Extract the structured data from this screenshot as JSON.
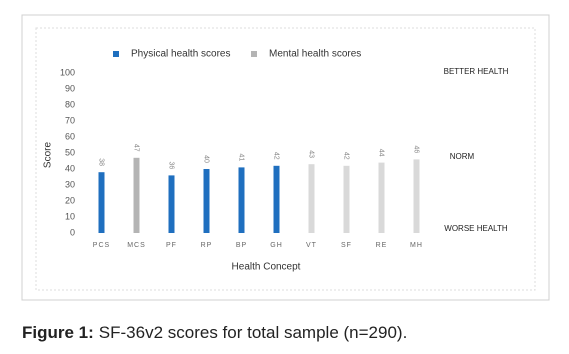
{
  "chart_data": {
    "type": "bar",
    "categories": [
      "PCS",
      "MCS",
      "PF",
      "RP",
      "BP",
      "GH",
      "VT",
      "SF",
      "RE",
      "MH"
    ],
    "series": [
      {
        "name": "Physical health scores",
        "color": "#1f6fbf",
        "values": [
          38,
          null,
          36,
          40,
          41,
          42,
          null,
          null,
          null,
          null
        ]
      },
      {
        "name": "Mental health scores",
        "color": "#b4b4b4",
        "point_colors": [
          null,
          "#b4b4b4",
          null,
          null,
          null,
          null,
          "#d9d9d9",
          "#d9d9d9",
          "#d9d9d9",
          "#d9d9d9"
        ],
        "values": [
          null,
          47,
          null,
          null,
          null,
          null,
          43,
          42,
          44,
          46
        ]
      }
    ],
    "ylim": [
      0,
      100
    ],
    "yticks": [
      0,
      10,
      20,
      30,
      40,
      50,
      60,
      70,
      80,
      90,
      100
    ],
    "y_label": "Score",
    "x_label": "Health Concept",
    "annotations": [
      "BETTER HEALTH",
      "NORM",
      "WORSE HEALTH"
    ],
    "caption": {
      "label": "Figure 1:",
      "text": "SF-36v2 scores for total sample (n=290)."
    }
  }
}
